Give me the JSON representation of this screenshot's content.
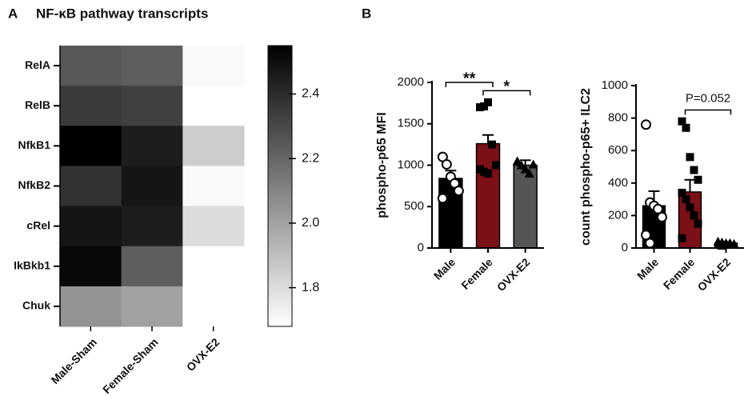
{
  "chart_data": [
    {
      "type": "heatmap",
      "panel": "A",
      "title": "NF-κB pathway transcripts",
      "rows": [
        "RelA",
        "RelB",
        "NfkB1",
        "NfkB2",
        "cRel",
        "IkBkb1",
        "Chuk"
      ],
      "columns": [
        "Male-Sham",
        "Female-Sham",
        "OVX-E2"
      ],
      "values": [
        [
          2.25,
          2.23,
          1.7
        ],
        [
          2.35,
          2.33,
          1.68
        ],
        [
          2.55,
          2.45,
          1.85
        ],
        [
          2.38,
          2.48,
          1.7
        ],
        [
          2.48,
          2.45,
          1.8
        ],
        [
          2.52,
          2.23,
          1.68
        ],
        [
          2.05,
          2.0,
          1.68
        ]
      ],
      "zlim": [
        1.68,
        2.55
      ],
      "zticks": [
        1.8,
        {
          "value": 2.0,
          "label": "2.0"
        },
        2.2,
        2.4
      ],
      "colormap": [
        "#ffffff",
        "#000000"
      ]
    },
    {
      "type": "bar",
      "panel": "B",
      "ylabel": "phospho-p65 MFI",
      "categories": [
        "Male",
        "Female",
        "OVX-E2"
      ],
      "values": [
        840,
        1260,
        1000
      ],
      "errors": [
        95,
        105,
        60
      ],
      "colors": [
        "#000000",
        "#7b1016",
        "#555555"
      ],
      "markers": [
        "circle",
        "square",
        "triangle"
      ],
      "marker_fills": [
        "#ffffff",
        "#000000",
        "#000000"
      ],
      "points": [
        [
          1100,
          1010,
          860,
          780,
          690,
          600
        ],
        [
          1700,
          1710,
          1760,
          1250,
          1000,
          950,
          920,
          900
        ],
        [
          1050,
          1000,
          950,
          900,
          1010
        ]
      ],
      "ylim": [
        0,
        2000
      ],
      "yticks": [
        0,
        500,
        1000,
        1500,
        2000
      ],
      "annotations": [
        {
          "text": "**",
          "between": [
            "Male",
            "Female"
          ]
        },
        {
          "text": "*",
          "between": [
            "Female",
            "OVX-E2"
          ]
        }
      ]
    },
    {
      "type": "bar",
      "ylabel": "count phospho-p65+ ILC2",
      "categories": [
        "Male",
        "Female",
        "OVX-E2"
      ],
      "values": [
        260,
        345,
        30
      ],
      "errors": [
        90,
        75,
        8
      ],
      "colors": [
        "#000000",
        "#7b1016",
        "#555555"
      ],
      "markers": [
        "circle",
        "square",
        "triangle"
      ],
      "marker_fills": [
        "#ffffff",
        "#000000",
        "#000000"
      ],
      "points": [
        [
          760,
          280,
          260,
          240,
          190,
          80,
          30
        ],
        [
          780,
          740,
          560,
          480,
          420,
          340,
          300,
          250,
          200,
          150,
          60
        ],
        [
          40,
          35,
          30,
          30,
          25,
          20,
          15
        ]
      ],
      "ylim": [
        0,
        1000
      ],
      "yticks": [
        0,
        200,
        400,
        600,
        800,
        1000
      ],
      "annotations": [
        {
          "text": "P=0.052",
          "between": [
            "Female",
            "OVX-E2"
          ]
        }
      ]
    }
  ]
}
